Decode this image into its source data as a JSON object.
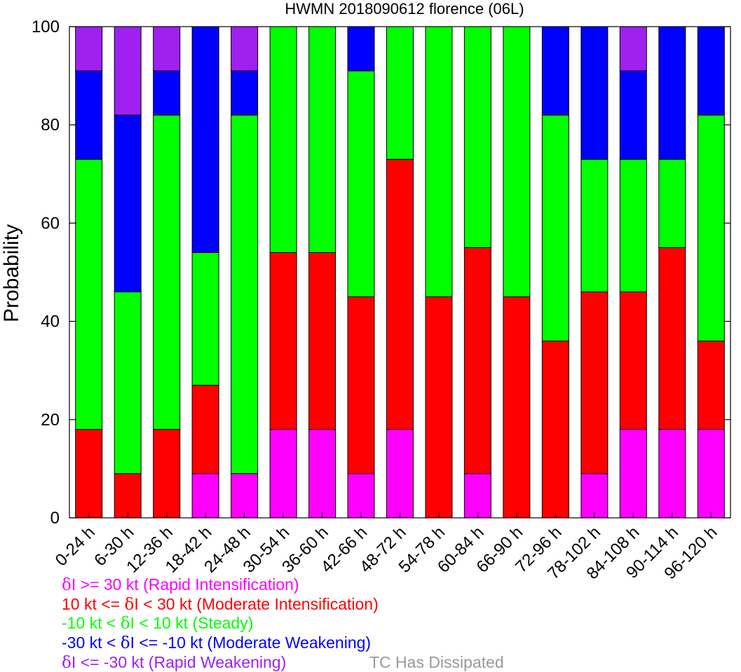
{
  "chart_data": {
    "type": "bar",
    "stacked": true,
    "title": "HWMN 2018090612 florence (06L)",
    "xlabel": "",
    "ylabel": "Probability",
    "ylim": [
      0,
      100
    ],
    "yticks": [
      0,
      20,
      40,
      60,
      80,
      100
    ],
    "grid": false,
    "categories": [
      "0-24 h",
      "6-30 h",
      "12-36 h",
      "18-42 h",
      "24-48 h",
      "30-54 h",
      "36-60 h",
      "42-66 h",
      "48-72 h",
      "54-78 h",
      "60-84 h",
      "66-90 h",
      "72-96 h",
      "78-102 h",
      "84-108 h",
      "90-114 h",
      "96-120 h"
    ],
    "series": [
      {
        "key": "ri",
        "color": "#ff00ff",
        "values": [
          0,
          0,
          0,
          9,
          9,
          18,
          18,
          9,
          18,
          0,
          9,
          0,
          0,
          9,
          18,
          18,
          18
        ]
      },
      {
        "key": "mi",
        "color": "#ff0000",
        "values": [
          18,
          9,
          18,
          18,
          0,
          36,
          36,
          36,
          55,
          45,
          46,
          45,
          36,
          37,
          28,
          37,
          18
        ]
      },
      {
        "key": "steady",
        "color": "#00ff00",
        "values": [
          55,
          37,
          64,
          27,
          73,
          46,
          46,
          46,
          27,
          55,
          45,
          55,
          46,
          27,
          27,
          18,
          46
        ]
      },
      {
        "key": "mw",
        "color": "#0000ff",
        "values": [
          18,
          36,
          9,
          46,
          9,
          0,
          0,
          9,
          0,
          0,
          0,
          0,
          18,
          27,
          18,
          27,
          18
        ]
      },
      {
        "key": "rw",
        "color": "#a020f0",
        "values": [
          9,
          18,
          9,
          0,
          9,
          0,
          0,
          0,
          0,
          0,
          0,
          0,
          0,
          0,
          9,
          0,
          0
        ]
      }
    ],
    "legend": {
      "position": "bottom-left",
      "entries": [
        {
          "prefix": "δ",
          "text": "I >= 30 kt (Rapid Intensification)",
          "color": "#ff00ff"
        },
        {
          "text": "10 kt <= ",
          "mid": "δ",
          "suffix": "I < 30 kt (Moderate Intensification)",
          "color": "#ff0000"
        },
        {
          "text": "-10 kt < ",
          "mid": "δ",
          "suffix": "I < 10 kt (Steady)",
          "color": "#00ff00"
        },
        {
          "text": "-30 kt < ",
          "mid": "δ",
          "suffix": "I <= -10 kt (Moderate Weakening)",
          "color": "#0000ff"
        },
        {
          "prefix": "δ",
          "text": "I <= -30 kt (Rapid Weakening)",
          "color": "#a020f0"
        }
      ],
      "dissipated": {
        "text": "TC Has Dissipated",
        "color": "#999999"
      }
    }
  }
}
